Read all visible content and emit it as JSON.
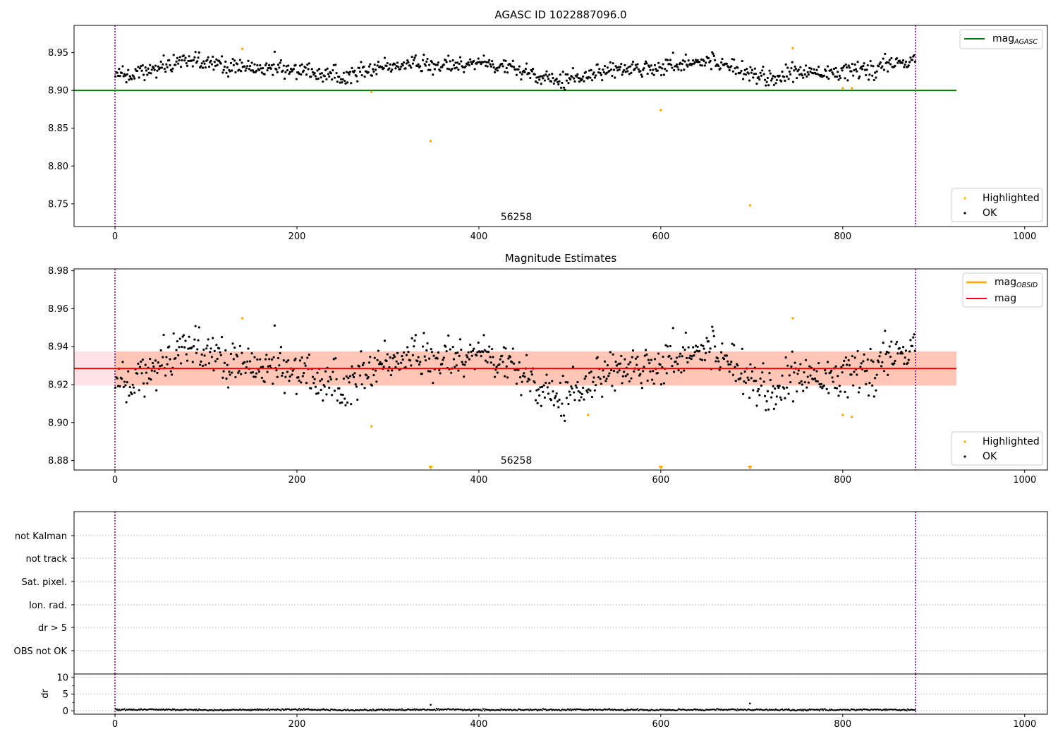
{
  "colors": {
    "ok": "#000000",
    "highlighted": "#ffa500",
    "mag_agasc": "#008000",
    "mag_obsid": "#ffa500",
    "mag": "#ff0000",
    "vline": "#800080",
    "band_outer": "#ffc0cb",
    "band_inner": "#ffa07a",
    "flag_grid": "#b0b0b0"
  },
  "chart_data": [
    {
      "id": "agasc",
      "type": "scatter",
      "title": "AGASC ID 1022887096.0",
      "xlim": [
        -45,
        1025
      ],
      "ylim": [
        8.72,
        8.986
      ],
      "xticks": [
        0,
        200,
        400,
        600,
        800,
        1000
      ],
      "yticks": [
        8.75,
        8.8,
        8.85,
        8.9,
        8.95
      ],
      "x_vlines": [
        0,
        880
      ],
      "annotation": {
        "text": "56258",
        "x": 440
      },
      "hline": {
        "name": "mag",
        "name_sub": "AGASC",
        "y": 8.9,
        "x_range": [
          -45,
          925
        ]
      },
      "legend_top": [
        "mag_agasc"
      ],
      "legend_bottom": {
        "highlighted": "Highlighted",
        "ok": "OK"
      },
      "ok_series": {
        "n": 880,
        "x_range": [
          0,
          880
        ],
        "base": 8.929
      },
      "highlighted": [
        {
          "x": 140,
          "y": 8.955
        },
        {
          "x": 282,
          "y": 8.898
        },
        {
          "x": 347,
          "y": 8.833
        },
        {
          "x": 600,
          "y": 8.874
        },
        {
          "x": 698,
          "y": 8.748
        },
        {
          "x": 745,
          "y": 8.956
        },
        {
          "x": 800,
          "y": 8.903
        },
        {
          "x": 810,
          "y": 8.903
        }
      ]
    },
    {
      "id": "mag-estimates",
      "type": "scatter",
      "title": "Magnitude Estimates",
      "xlim": [
        -45,
        1025
      ],
      "ylim": [
        8.875,
        8.981
      ],
      "xticks": [
        0,
        200,
        400,
        600,
        800,
        1000
      ],
      "yticks": [
        8.88,
        8.9,
        8.92,
        8.94,
        8.96,
        8.98
      ],
      "x_vlines": [
        0,
        880
      ],
      "annotation": {
        "text": "56258",
        "x": 440
      },
      "mag_line": {
        "name": "mag",
        "y": 8.9285,
        "x_range": [
          -45,
          925
        ]
      },
      "mag_obsid_line": {
        "name": "mag",
        "name_sub": "OBSID",
        "y": 8.9285
      },
      "band_outer": {
        "ylo": 8.9195,
        "yhi": 8.9375,
        "x_range": [
          -45,
          925
        ]
      },
      "band_inner": {
        "ylo": 8.9195,
        "yhi": 8.9375,
        "x_range": [
          0,
          925
        ]
      },
      "legend_top": [
        "mag_obsid",
        "mag"
      ],
      "legend_bottom": {
        "highlighted": "Highlighted",
        "ok": "OK"
      },
      "highlighted": [
        {
          "x": 140,
          "y": 8.955
        },
        {
          "x": 282,
          "y": 8.898
        },
        {
          "x": 520,
          "y": 8.904
        },
        {
          "x": 745,
          "y": 8.955
        },
        {
          "x": 800,
          "y": 8.904
        },
        {
          "x": 810,
          "y": 8.903
        }
      ],
      "below_range_markers": [
        347,
        600,
        698
      ]
    },
    {
      "id": "flags",
      "type": "scatter",
      "xlim": [
        -45,
        1025
      ],
      "x_vlines": [
        0,
        880
      ],
      "categories": [
        "not Kalman",
        "not track",
        "Sat. pixel.",
        "Ion. rad.",
        "dr > 5",
        "OBS not OK"
      ],
      "points": []
    },
    {
      "id": "dr",
      "type": "scatter",
      "ylabel": "dr",
      "xlim": [
        -45,
        1025
      ],
      "ylim": [
        -1,
        11
      ],
      "xticks": [
        0,
        200,
        400,
        600,
        800,
        1000
      ],
      "yticks": [
        0,
        5,
        10
      ],
      "x_vlines": [
        0,
        880
      ],
      "ok_series": {
        "n": 880,
        "x_range": [
          0,
          880
        ],
        "typical": 0.3
      },
      "outliers": [
        {
          "x": 347,
          "y": 1.8
        },
        {
          "x": 698,
          "y": 2.2
        }
      ]
    }
  ]
}
